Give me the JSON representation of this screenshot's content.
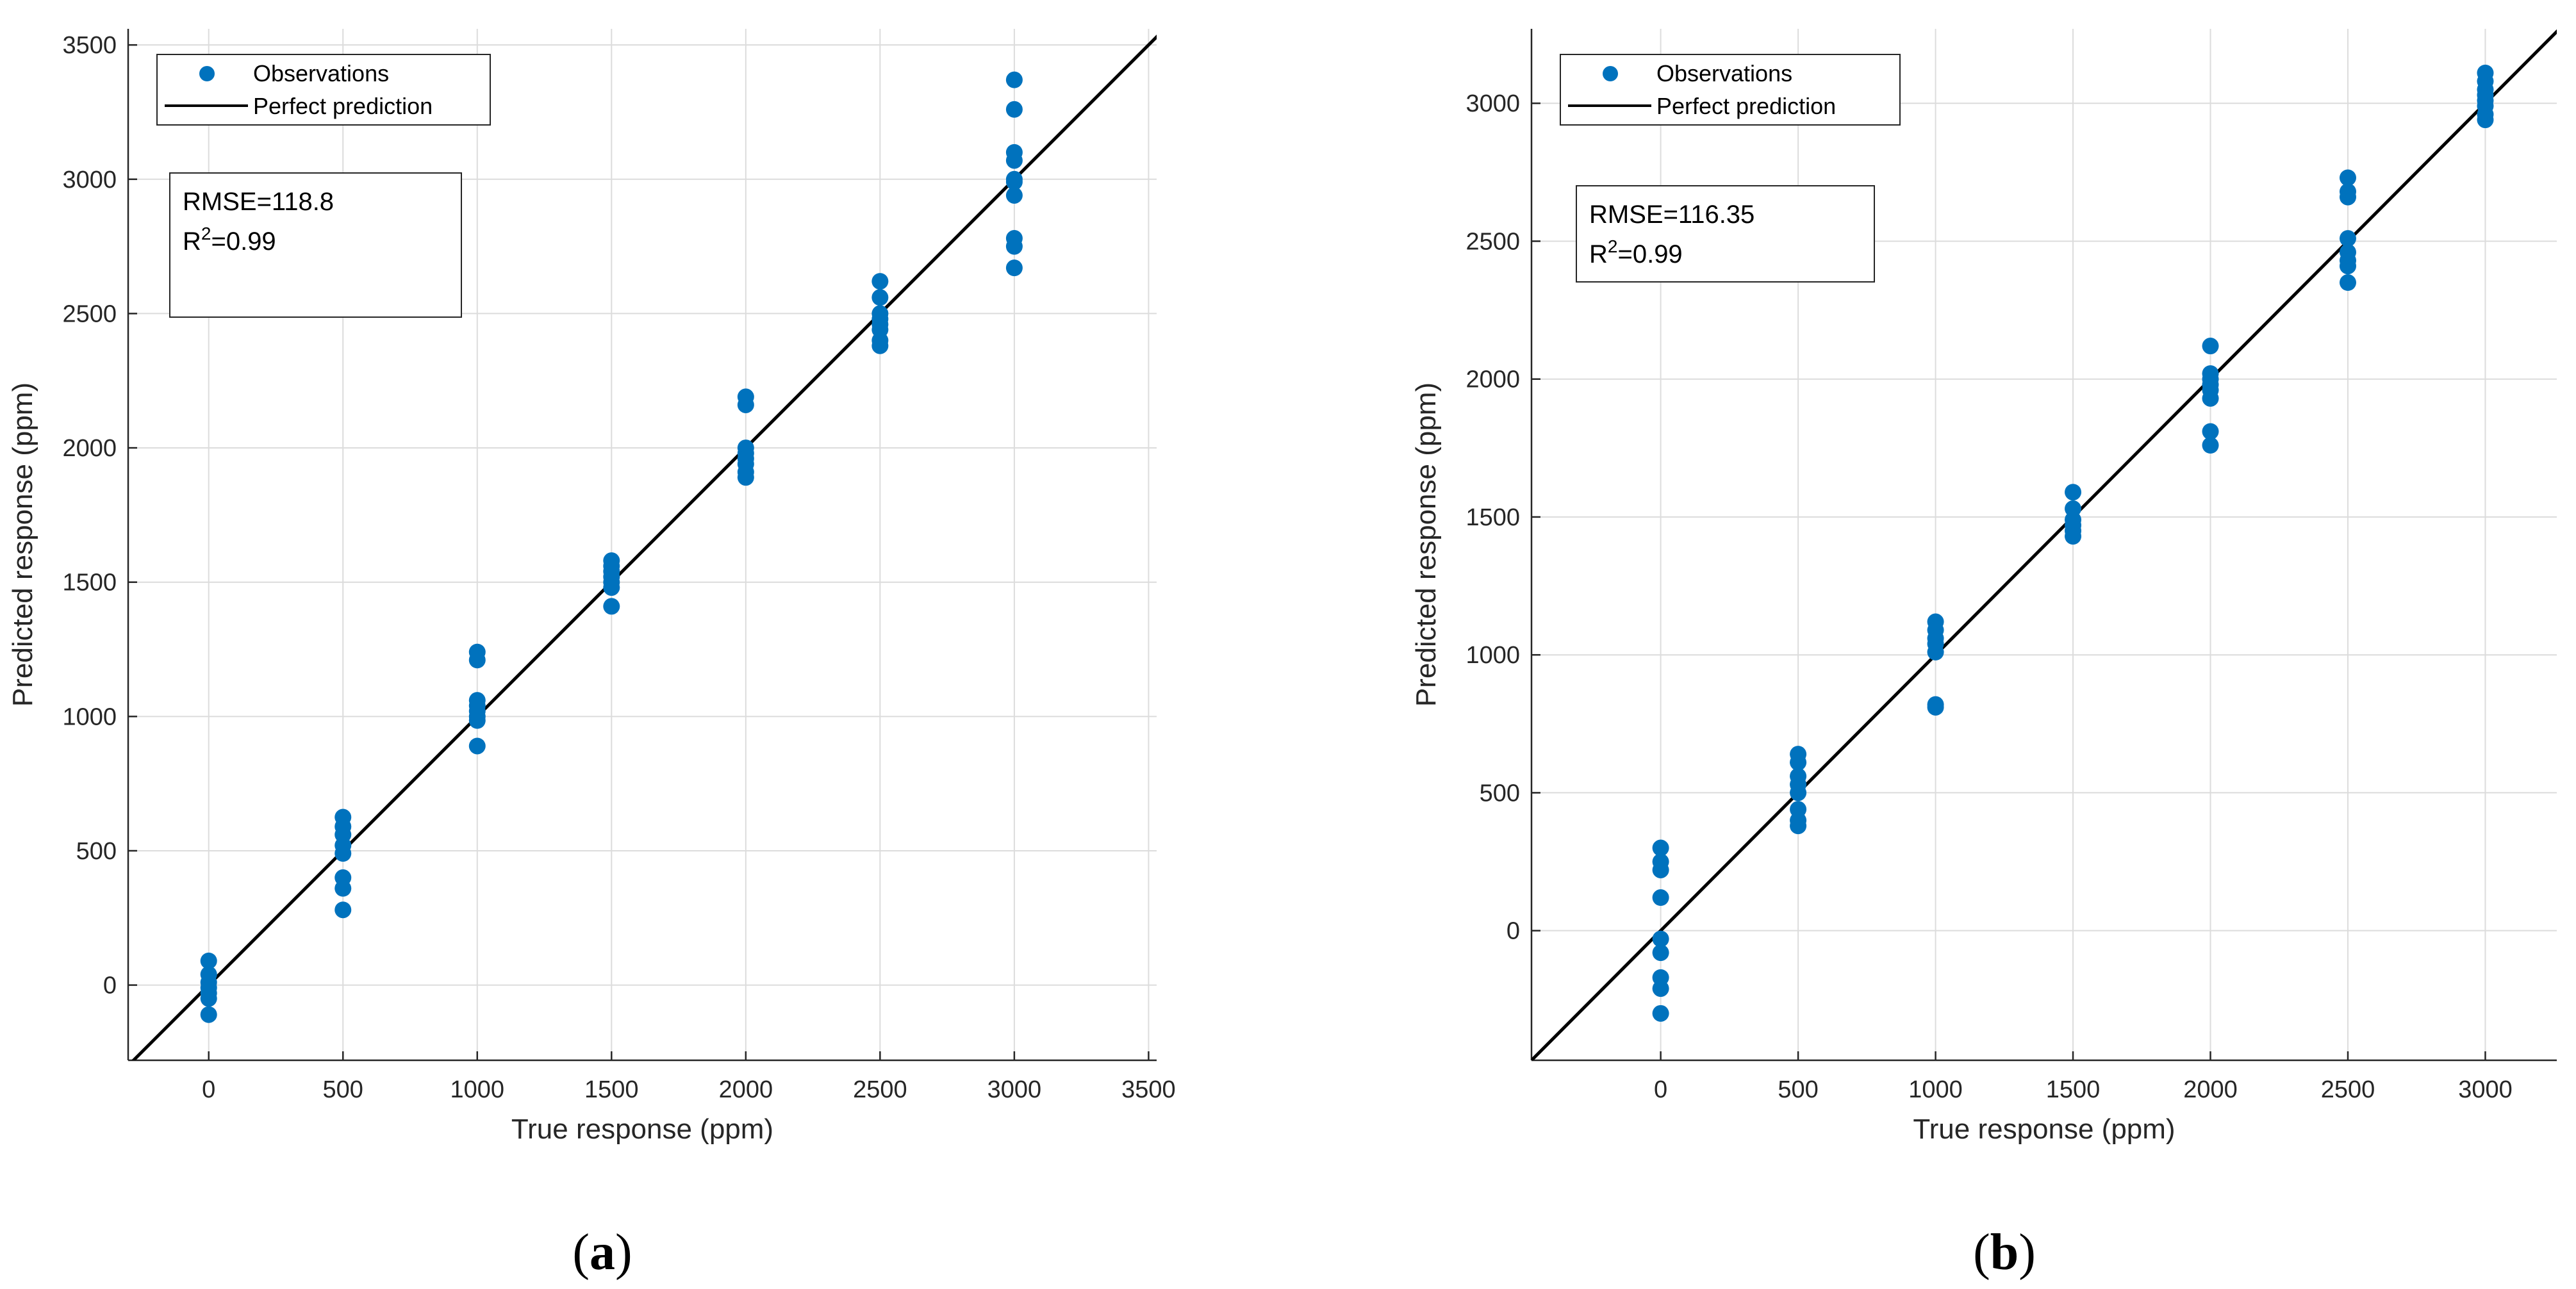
{
  "chart_data": [
    {
      "type": "scatter",
      "panel_label": "a",
      "xlabel": "True response (ppm)",
      "ylabel": "Predicted response (ppm)",
      "xlim": [
        -300,
        3530
      ],
      "ylim": [
        -280,
        3560
      ],
      "xticks": [
        0,
        500,
        1000,
        1500,
        2000,
        2500,
        3000,
        3500
      ],
      "yticks": [
        0,
        500,
        1000,
        1500,
        2000,
        2500,
        3000,
        3500
      ],
      "grid": true,
      "legend": {
        "placement": "top-left",
        "entries": [
          "Observations",
          "Perfect prediction"
        ]
      },
      "stats": {
        "rmse": "RMSE=118.8",
        "r2_prefix": "R",
        "r2_sup": "2",
        "r2_value": "=0.99"
      },
      "series": [
        {
          "name": "Observations",
          "color": "#0072BD",
          "points": [
            [
              0,
              90
            ],
            [
              0,
              40
            ],
            [
              0,
              10
            ],
            [
              0,
              -10
            ],
            [
              0,
              -30
            ],
            [
              0,
              -50
            ],
            [
              0,
              -110
            ],
            [
              500,
              625
            ],
            [
              500,
              590
            ],
            [
              500,
              560
            ],
            [
              500,
              520
            ],
            [
              500,
              490
            ],
            [
              500,
              400
            ],
            [
              500,
              360
            ],
            [
              500,
              280
            ],
            [
              1000,
              1240
            ],
            [
              1000,
              1210
            ],
            [
              1000,
              1060
            ],
            [
              1000,
              1040
            ],
            [
              1000,
              1020
            ],
            [
              1000,
              1000
            ],
            [
              1000,
              985
            ],
            [
              1000,
              890
            ],
            [
              1500,
              1580
            ],
            [
              1500,
              1560
            ],
            [
              1500,
              1540
            ],
            [
              1500,
              1520
            ],
            [
              1500,
              1500
            ],
            [
              1500,
              1480
            ],
            [
              1500,
              1410
            ],
            [
              2000,
              2190
            ],
            [
              2000,
              2160
            ],
            [
              2000,
              2000
            ],
            [
              2000,
              1980
            ],
            [
              2000,
              1960
            ],
            [
              2000,
              1940
            ],
            [
              2000,
              1910
            ],
            [
              2000,
              1890
            ],
            [
              2500,
              2620
            ],
            [
              2500,
              2560
            ],
            [
              2500,
              2500
            ],
            [
              2500,
              2480
            ],
            [
              2500,
              2460
            ],
            [
              2500,
              2440
            ],
            [
              2500,
              2400
            ],
            [
              2500,
              2380
            ],
            [
              3000,
              3370
            ],
            [
              3000,
              3260
            ],
            [
              3000,
              3100
            ],
            [
              3000,
              3070
            ],
            [
              3000,
              3000
            ],
            [
              3000,
              2990
            ],
            [
              3000,
              2940
            ],
            [
              3000,
              2780
            ],
            [
              3000,
              2750
            ],
            [
              3000,
              2670
            ]
          ]
        },
        {
          "name": "Perfect prediction",
          "color": "#000000",
          "line": [
            [
              -300,
              -300
            ],
            [
              3600,
              3600
            ]
          ]
        }
      ]
    },
    {
      "type": "scatter",
      "panel_label": "b",
      "xlabel": "True response (ppm)",
      "ylabel": "Predicted response (ppm)",
      "xlim": [
        -470,
        3260
      ],
      "ylim": [
        -470,
        3270
      ],
      "xticks": [
        0,
        500,
        1000,
        1500,
        2000,
        2500,
        3000
      ],
      "yticks": [
        0,
        500,
        1000,
        1500,
        2000,
        2500,
        3000
      ],
      "grid": true,
      "legend": {
        "placement": "top-left",
        "entries": [
          "Observations",
          "Perfect prediction"
        ]
      },
      "stats": {
        "rmse": "RMSE=116.35",
        "r2_prefix": "R",
        "r2_sup": "2",
        "r2_value": "=0.99"
      },
      "series": [
        {
          "name": "Observations",
          "color": "#0072BD",
          "points": [
            [
              0,
              300
            ],
            [
              0,
              250
            ],
            [
              0,
              220
            ],
            [
              0,
              120
            ],
            [
              0,
              -30
            ],
            [
              0,
              -80
            ],
            [
              0,
              -170
            ],
            [
              0,
              -210
            ],
            [
              0,
              -300
            ],
            [
              500,
              640
            ],
            [
              500,
              610
            ],
            [
              500,
              560
            ],
            [
              500,
              530
            ],
            [
              500,
              500
            ],
            [
              500,
              440
            ],
            [
              500,
              400
            ],
            [
              500,
              380
            ],
            [
              1000,
              1120
            ],
            [
              1000,
              1090
            ],
            [
              1000,
              1060
            ],
            [
              1000,
              1040
            ],
            [
              1000,
              1010
            ],
            [
              1000,
              820
            ],
            [
              1000,
              810
            ],
            [
              1500,
              1590
            ],
            [
              1500,
              1530
            ],
            [
              1500,
              1490
            ],
            [
              1500,
              1470
            ],
            [
              1500,
              1450
            ],
            [
              1500,
              1430
            ],
            [
              2000,
              2120
            ],
            [
              2000,
              2020
            ],
            [
              2000,
              2000
            ],
            [
              2000,
              1980
            ],
            [
              2000,
              1960
            ],
            [
              2000,
              1930
            ],
            [
              2000,
              1810
            ],
            [
              2000,
              1760
            ],
            [
              2500,
              2730
            ],
            [
              2500,
              2680
            ],
            [
              2500,
              2660
            ],
            [
              2500,
              2510
            ],
            [
              2500,
              2460
            ],
            [
              2500,
              2430
            ],
            [
              2500,
              2410
            ],
            [
              2500,
              2350
            ],
            [
              3000,
              3110
            ],
            [
              3000,
              3080
            ],
            [
              3000,
              3050
            ],
            [
              3000,
              3030
            ],
            [
              3000,
              3010
            ],
            [
              3000,
              2990
            ],
            [
              3000,
              2960
            ],
            [
              3000,
              2940
            ]
          ]
        },
        {
          "name": "Perfect prediction",
          "color": "#000000",
          "line": [
            [
              -470,
              -470
            ],
            [
              3300,
              3300
            ]
          ]
        }
      ]
    }
  ]
}
